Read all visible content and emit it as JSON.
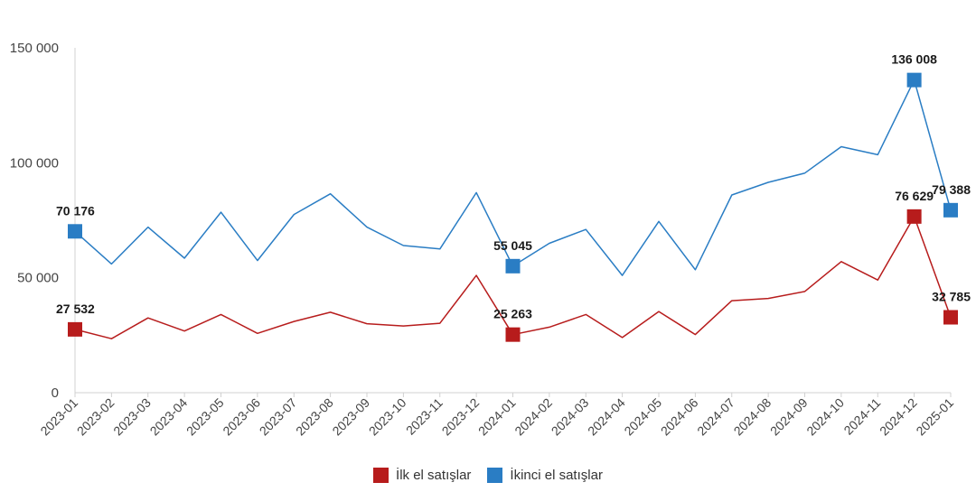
{
  "chart_data": {
    "type": "line",
    "title": "",
    "xlabel": "",
    "ylabel": "",
    "ylim": [
      0,
      150000
    ],
    "yticks": [
      {
        "value": 0,
        "label": "0"
      },
      {
        "value": 50000,
        "label": "50 000"
      },
      {
        "value": 100000,
        "label": "100 000"
      },
      {
        "value": 150000,
        "label": "150 000"
      }
    ],
    "grid": false,
    "legend_position": "bottom",
    "categories": [
      "2023-01",
      "2023-02",
      "2023-03",
      "2023-04",
      "2023-05",
      "2023-06",
      "2023-07",
      "2023-08",
      "2023-09",
      "2023-10",
      "2023-11",
      "2023-12",
      "2024-01",
      "2024-02",
      "2024-03",
      "2024-04",
      "2024-05",
      "2024-06",
      "2024-07",
      "2024-08",
      "2024-09",
      "2024-10",
      "2024-11",
      "2024-12",
      "2025-01"
    ],
    "series": [
      {
        "name": "İlk el satışlar",
        "color": "#b71c1c",
        "values": [
          27532,
          23500,
          32500,
          26800,
          34000,
          25800,
          31000,
          35000,
          30000,
          29000,
          30200,
          51000,
          25263,
          28500,
          34000,
          24000,
          35300,
          25300,
          40000,
          41000,
          44000,
          57000,
          49000,
          76629,
          32785
        ],
        "marked": [
          {
            "index": 0,
            "label": "27 532"
          },
          {
            "index": 12,
            "label": "25 263"
          },
          {
            "index": 23,
            "label": "76 629"
          },
          {
            "index": 24,
            "label": "32 785"
          }
        ]
      },
      {
        "name": "İkinci el satışlar",
        "color": "#2a7dc4",
        "values": [
          70176,
          56000,
          72000,
          58500,
          78500,
          57500,
          77500,
          86500,
          72000,
          64000,
          62500,
          87000,
          55045,
          65000,
          71000,
          51000,
          74500,
          53500,
          86000,
          91500,
          95500,
          107000,
          103500,
          136008,
          79388
        ],
        "marked": [
          {
            "index": 0,
            "label": "70 176"
          },
          {
            "index": 12,
            "label": "55 045"
          },
          {
            "index": 23,
            "label": "136 008"
          },
          {
            "index": 24,
            "label": "79 388"
          }
        ]
      }
    ]
  }
}
